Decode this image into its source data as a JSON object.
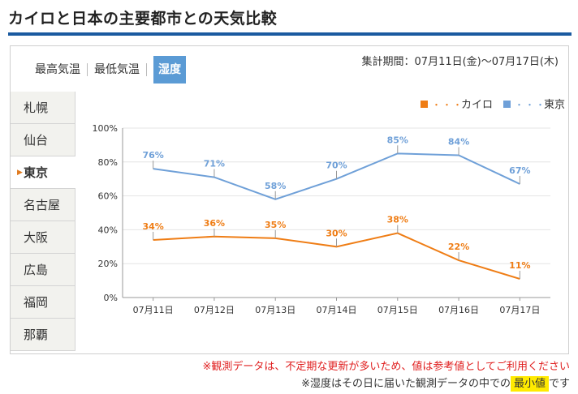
{
  "title": "カイロと日本の主要都市との天気比較",
  "tabs": [
    "最高気温",
    "最低気温",
    "湿度"
  ],
  "active_tab": "湿度",
  "period": "集計期間：07月11日(金)〜07月17日(木)",
  "cities": [
    "札幌",
    "仙台",
    "東京",
    "名古屋",
    "大阪",
    "広島",
    "福岡",
    "那覇"
  ],
  "active_city": "東京",
  "arrow_glyph": "▶",
  "colors": {
    "cairo": "#ef7d15",
    "tokyo": "#6fa0d8",
    "grid": "#e4e4e4",
    "axis": "#999999"
  },
  "chart_data": {
    "type": "line",
    "categories": [
      "07月11日",
      "07月12日",
      "07月13日",
      "07月14日",
      "07月15日",
      "07月16日",
      "07月17日"
    ],
    "series": [
      {
        "name": "カイロ",
        "values": [
          34,
          36,
          35,
          30,
          38,
          22,
          11
        ]
      },
      {
        "name": "東京",
        "values": [
          76,
          71,
          58,
          70,
          85,
          84,
          67
        ]
      }
    ],
    "y_ticks": [
      "0%",
      "20%",
      "40%",
      "60%",
      "80%",
      "100%"
    ],
    "ylim": [
      0,
      100
    ],
    "grid": true,
    "legend_position": "top-right",
    "legend_labels": [
      "カイロ",
      "東京"
    ],
    "legend_dots": "・・・"
  },
  "notes": {
    "line1": "※観測データは、不定期な更新が多いため、値は参考値としてご利用ください",
    "line2_prefix": "※湿度はその日に届いた観測データの中での",
    "line2_highlight": "最小値",
    "line2_suffix": "です"
  }
}
